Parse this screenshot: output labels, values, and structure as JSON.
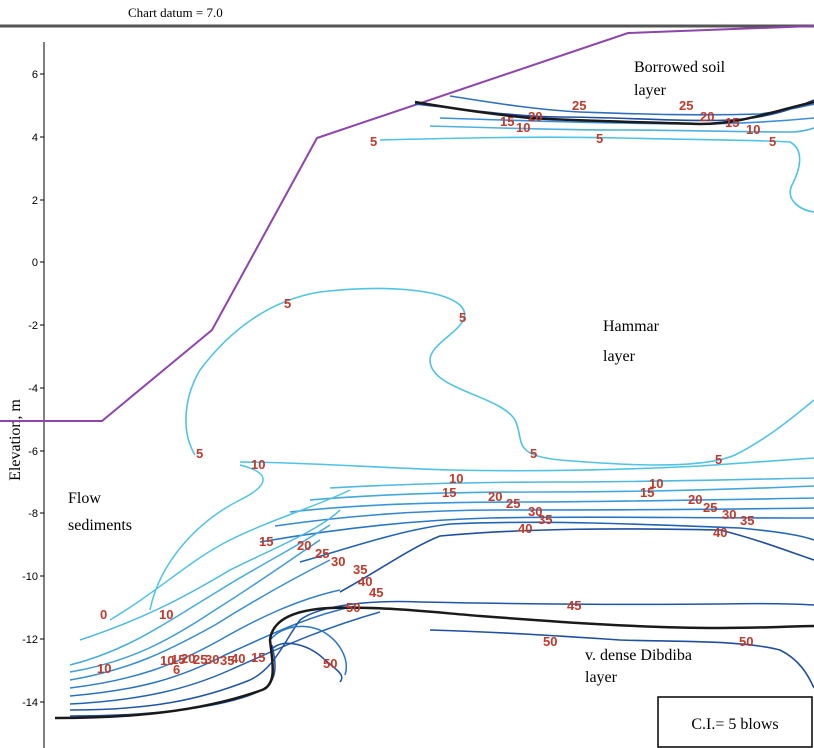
{
  "chart_datum": "Chart datum = 7.0",
  "y_axis": {
    "label": "Elevation, m",
    "ticks": [
      "6",
      "4",
      "2",
      "0",
      "-2",
      "-4",
      "-6",
      "-8",
      "-10",
      "-12",
      "-14"
    ]
  },
  "layers": {
    "borrowed_soil": [
      "Borrowed soil",
      "layer"
    ],
    "hammar": [
      "Hammar",
      "layer"
    ],
    "flow_sediments": [
      "Flow",
      "sediments"
    ],
    "dibdiba": [
      "v. dense Dibdiba",
      "layer"
    ]
  },
  "legend": {
    "contour_interval": "C.I.= 5 blows"
  },
  "contour_labels": {
    "borrowed": [
      "25",
      "25",
      "20",
      "15",
      "10",
      "20",
      "15",
      "10",
      "5",
      "5",
      "5"
    ],
    "hammar": [
      "5",
      "5",
      "5",
      "5",
      "5"
    ],
    "upper_band": [
      "10",
      "15",
      "20",
      "25",
      "30",
      "35",
      "40",
      "10",
      "15",
      "20",
      "25",
      "30",
      "35",
      "40",
      "10"
    ],
    "slope": [
      "15",
      "20",
      "25",
      "30",
      "35",
      "40",
      "45",
      "50",
      "45",
      "50",
      "50",
      "50"
    ],
    "toe": [
      "0",
      "10",
      "10",
      "10",
      "15",
      "20",
      "25",
      "30",
      "35",
      "40",
      "15",
      "6"
    ]
  },
  "colors": {
    "slope_profile": "#8e44ad",
    "boundary": "#1a1a1a",
    "contour_light": "#4fc3e6",
    "contour_dark": "#1f4fa0",
    "label": "#c0392b"
  }
}
